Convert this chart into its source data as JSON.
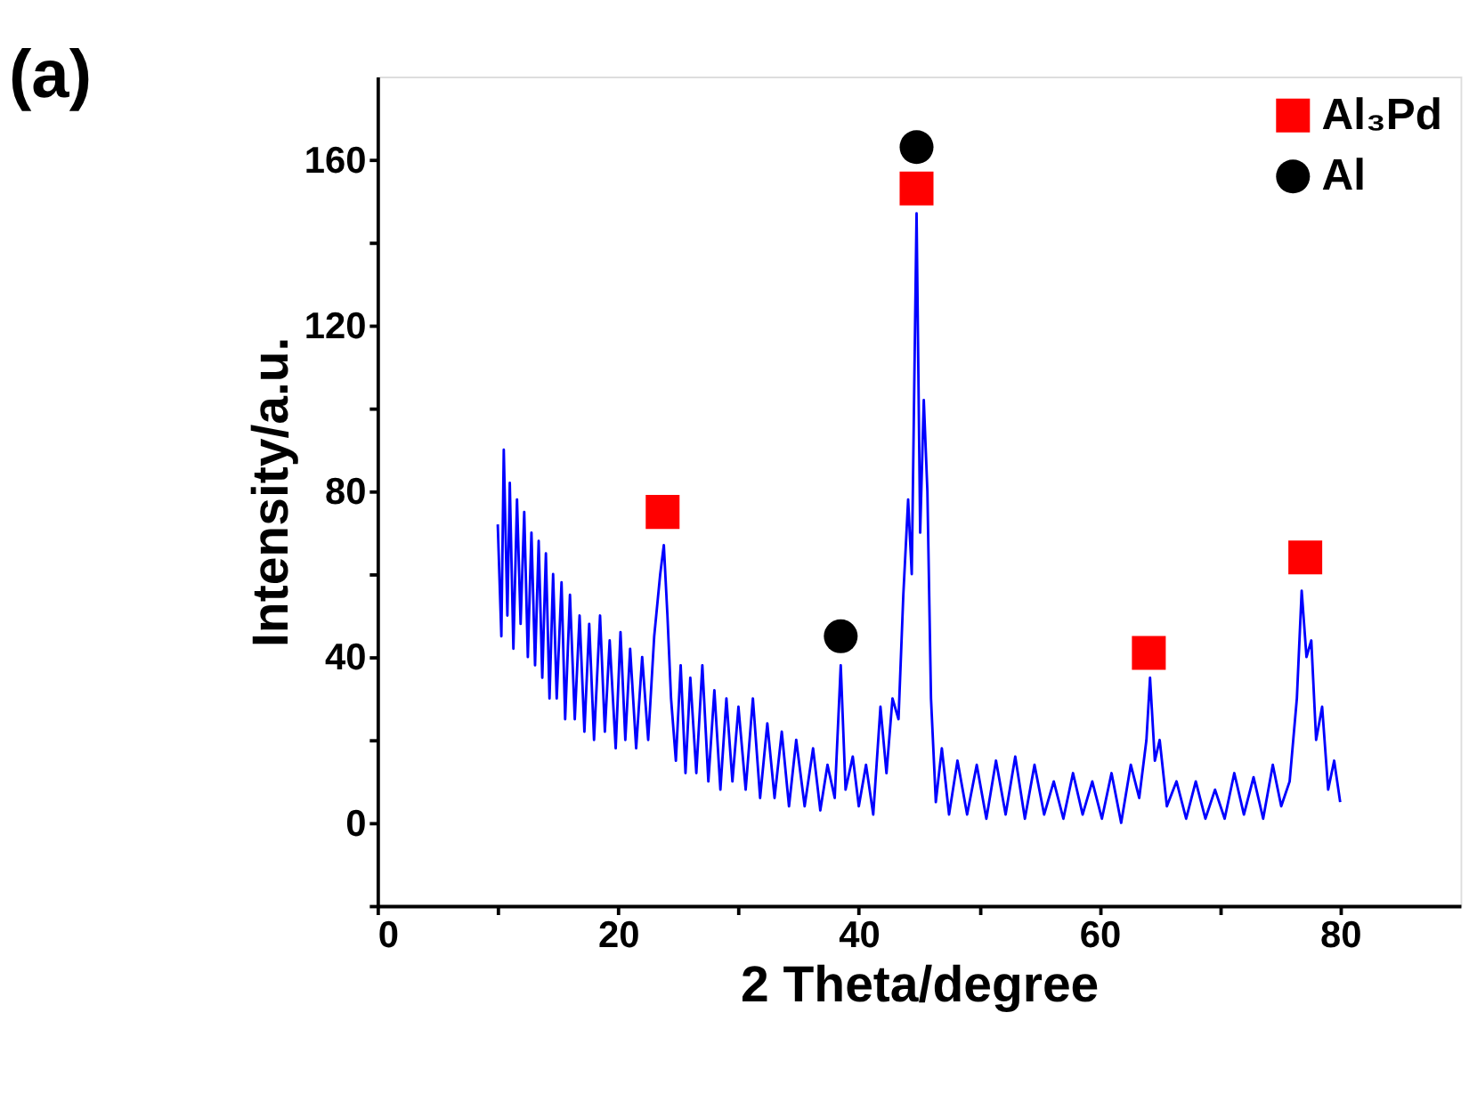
{
  "chart_data": {
    "type": "line",
    "title": "(a)",
    "xlabel": "2 Theta/degree",
    "ylabel": "Intensity/a.u.",
    "xlim": [
      0,
      90
    ],
    "xticks": [
      0,
      {
        "value": 10,
        "label": null
      },
      20,
      {
        "value": 30,
        "label": null
      },
      40,
      {
        "value": 50,
        "label": null
      },
      60,
      {
        "value": 70,
        "label": null
      },
      80
    ],
    "ylim": [
      -20,
      180
    ],
    "yticks": [
      {
        "value": -20,
        "label": null
      },
      0,
      {
        "value": 20,
        "label": null
      },
      40,
      {
        "value": 60,
        "label": null
      },
      80,
      {
        "value": 100,
        "label": null
      },
      120,
      {
        "value": 140,
        "label": null
      },
      160
    ],
    "grid": false,
    "legend": "top right",
    "series": [
      {
        "color": "#0000ff",
        "marker": "none",
        "line_style": "solid",
        "x": [
          10.0,
          10.3,
          10.5,
          10.8,
          11.0,
          11.3,
          11.6,
          11.9,
          12.2,
          12.5,
          12.8,
          13.1,
          13.4,
          13.7,
          14.0,
          14.3,
          14.6,
          14.9,
          15.3,
          15.6,
          16.0,
          16.4,
          16.8,
          17.2,
          17.6,
          18.0,
          18.5,
          18.9,
          19.3,
          19.8,
          20.2,
          20.6,
          21.0,
          21.5,
          22.0,
          22.5,
          23.0,
          23.5,
          23.8,
          24.1,
          24.4,
          24.8,
          25.2,
          25.6,
          26.0,
          26.5,
          27.0,
          27.5,
          28.0,
          28.5,
          29.0,
          29.5,
          30.0,
          30.6,
          31.2,
          31.8,
          32.4,
          33.0,
          33.6,
          34.2,
          34.8,
          35.5,
          36.2,
          36.8,
          37.4,
          38.0,
          38.5,
          38.9,
          39.5,
          40.0,
          40.6,
          41.2,
          41.8,
          42.3,
          42.8,
          43.3,
          43.7,
          44.1,
          44.4,
          44.8,
          45.1,
          45.4,
          45.7,
          46.0,
          46.4,
          46.9,
          47.5,
          48.2,
          49.0,
          49.8,
          50.6,
          51.4,
          52.2,
          53.0,
          53.8,
          54.6,
          55.4,
          56.2,
          57.0,
          57.8,
          58.6,
          59.4,
          60.2,
          61.0,
          61.8,
          62.6,
          63.3,
          63.9,
          64.2,
          64.6,
          65.0,
          65.6,
          66.4,
          67.2,
          68.0,
          68.8,
          69.6,
          70.4,
          71.2,
          72.0,
          72.8,
          73.6,
          74.4,
          75.1,
          75.8,
          76.4,
          76.8,
          77.2,
          77.6,
          78.0,
          78.5,
          79.0,
          79.5,
          80.0
        ],
        "values": [
          72,
          45,
          90,
          50,
          82,
          42,
          78,
          48,
          75,
          40,
          70,
          38,
          68,
          35,
          65,
          30,
          60,
          30,
          58,
          25,
          55,
          25,
          50,
          22,
          48,
          20,
          50,
          22,
          44,
          18,
          46,
          20,
          42,
          18,
          40,
          20,
          45,
          60,
          67,
          50,
          30,
          15,
          38,
          12,
          35,
          12,
          38,
          10,
          32,
          8,
          30,
          10,
          28,
          8,
          30,
          6,
          24,
          6,
          22,
          4,
          20,
          4,
          18,
          3,
          14,
          6,
          38,
          8,
          16,
          4,
          14,
          2,
          28,
          12,
          30,
          25,
          55,
          78,
          60,
          147,
          70,
          102,
          80,
          30,
          5,
          18,
          2,
          15,
          2,
          14,
          1,
          15,
          2,
          16,
          1,
          14,
          2,
          10,
          1,
          12,
          2,
          10,
          1,
          12,
          0,
          14,
          6,
          20,
          35,
          15,
          20,
          4,
          10,
          1,
          10,
          1,
          8,
          1,
          12,
          2,
          11,
          1,
          14,
          4,
          10,
          30,
          56,
          40,
          44,
          20,
          28,
          8,
          15,
          5
        ]
      },
      {
        "type": "scatter",
        "name": "Al₃Pd",
        "color": "#ff0000",
        "marker": "square",
        "x": [
          23.7,
          44.8,
          64.1,
          77.1
        ],
        "values": [
          75,
          153,
          41,
          64
        ]
      },
      {
        "type": "scatter",
        "name": "Al",
        "color": "#000000",
        "marker": "circle",
        "x": [
          38.5,
          44.8
        ],
        "values": [
          45,
          163
        ]
      }
    ]
  }
}
